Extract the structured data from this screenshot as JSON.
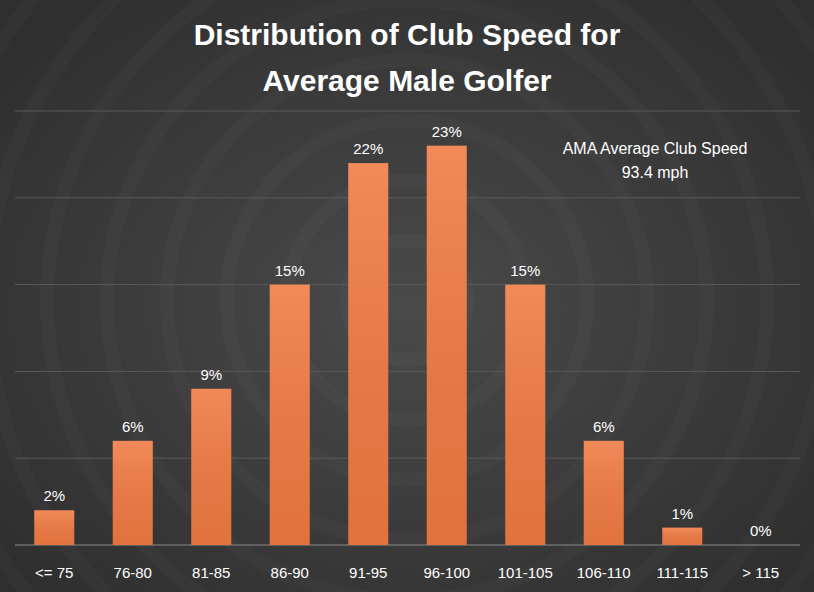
{
  "chart_data": {
    "type": "bar",
    "title": "Distribution of Club Speed for\nAverage Male Golfer",
    "annotation": "AMA Average Club Speed\n93.4 mph",
    "categories": [
      "<= 75",
      "76-80",
      "81-85",
      "86-90",
      "91-95",
      "96-100",
      "101-105",
      "106-110",
      "111-115",
      "> 115"
    ],
    "values": [
      2,
      6,
      9,
      15,
      22,
      23,
      15,
      6,
      1,
      0
    ],
    "value_labels": [
      "2%",
      "6%",
      "9%",
      "15%",
      "22%",
      "23%",
      "15%",
      "6%",
      "1%",
      "0%"
    ],
    "color": "#f07a42",
    "ylim": [
      0,
      25
    ],
    "yticks": [
      0,
      5,
      10,
      15,
      20,
      25
    ],
    "grid": true,
    "data_labels": true,
    "tick_labels": "x"
  }
}
